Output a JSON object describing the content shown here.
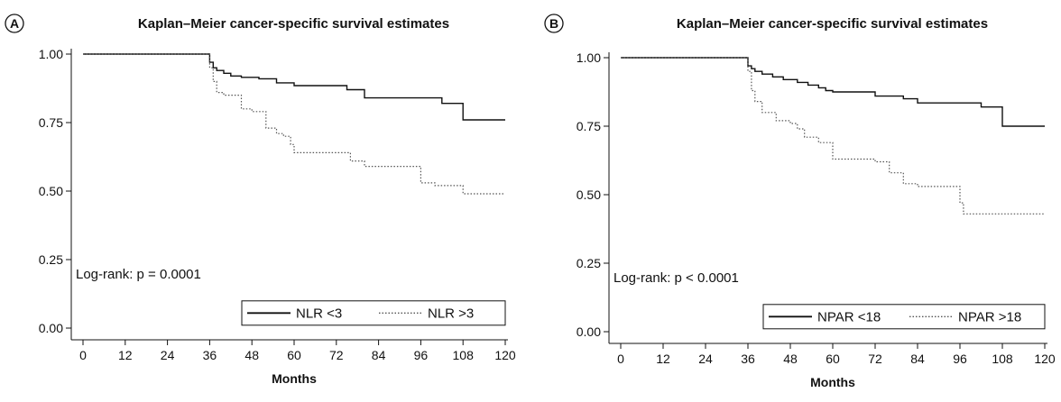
{
  "chart_data": [
    {
      "type": "line",
      "panel_label": "A",
      "title": "Kaplan–Meier cancer-specific survival estimates",
      "xlabel": "Months",
      "ylabel": "",
      "xlim": [
        0,
        120
      ],
      "ylim": [
        0,
        1
      ],
      "xticks": [
        "0",
        "12",
        "24",
        "36",
        "48",
        "60",
        "72",
        "84",
        "96",
        "108",
        "120"
      ],
      "yticks": [
        "0.00",
        "0.25",
        "0.50",
        "0.75",
        "1.00"
      ],
      "grid": false,
      "annotation": "Log-rank: p = 0.0001",
      "legend_position": "bottom-right",
      "series": [
        {
          "name": "NLR <3",
          "style": "solid",
          "points": [
            [
              0,
              1.0
            ],
            [
              36,
              1.0
            ],
            [
              36,
              0.97
            ],
            [
              37,
              0.95
            ],
            [
              38,
              0.94
            ],
            [
              40,
              0.93
            ],
            [
              42,
              0.92
            ],
            [
              45,
              0.915
            ],
            [
              50,
              0.91
            ],
            [
              55,
              0.895
            ],
            [
              60,
              0.885
            ],
            [
              75,
              0.87
            ],
            [
              80,
              0.84
            ],
            [
              102,
              0.82
            ],
            [
              108,
              0.76
            ],
            [
              120,
              0.76
            ]
          ]
        },
        {
          "name": "NLR >3",
          "style": "dotted",
          "points": [
            [
              0,
              1.0
            ],
            [
              36,
              1.0
            ],
            [
              36,
              0.95
            ],
            [
              37,
              0.9
            ],
            [
              38,
              0.86
            ],
            [
              40,
              0.85
            ],
            [
              45,
              0.8
            ],
            [
              48,
              0.79
            ],
            [
              52,
              0.73
            ],
            [
              55,
              0.71
            ],
            [
              57,
              0.7
            ],
            [
              59,
              0.67
            ],
            [
              60,
              0.64
            ],
            [
              76,
              0.61
            ],
            [
              80,
              0.59
            ],
            [
              84,
              0.59
            ],
            [
              96,
              0.53
            ],
            [
              100,
              0.52
            ],
            [
              108,
              0.49
            ],
            [
              120,
              0.49
            ]
          ]
        }
      ]
    },
    {
      "type": "line",
      "panel_label": "B",
      "title": "Kaplan–Meier cancer-specific survival estimates",
      "xlabel": "Months",
      "ylabel": "",
      "xlim": [
        0,
        120
      ],
      "ylim": [
        0,
        1
      ],
      "xticks": [
        "0",
        "12",
        "24",
        "36",
        "48",
        "60",
        "72",
        "84",
        "96",
        "108",
        "120"
      ],
      "yticks": [
        "0.00",
        "0.25",
        "0.50",
        "0.75",
        "1.00"
      ],
      "grid": false,
      "annotation": "Log-rank: p < 0.0001",
      "legend_position": "bottom-right",
      "series": [
        {
          "name": "NPAR <18",
          "style": "solid",
          "points": [
            [
              0,
              1.0
            ],
            [
              36,
              1.0
            ],
            [
              36,
              0.97
            ],
            [
              37,
              0.96
            ],
            [
              38,
              0.95
            ],
            [
              40,
              0.94
            ],
            [
              43,
              0.93
            ],
            [
              46,
              0.92
            ],
            [
              50,
              0.91
            ],
            [
              53,
              0.9
            ],
            [
              56,
              0.89
            ],
            [
              58,
              0.88
            ],
            [
              60,
              0.875
            ],
            [
              72,
              0.86
            ],
            [
              80,
              0.85
            ],
            [
              84,
              0.835
            ],
            [
              102,
              0.82
            ],
            [
              108,
              0.75
            ],
            [
              120,
              0.75
            ]
          ]
        },
        {
          "name": "NPAR >18",
          "style": "dotted",
          "points": [
            [
              0,
              1.0
            ],
            [
              36,
              1.0
            ],
            [
              36,
              0.95
            ],
            [
              37,
              0.88
            ],
            [
              38,
              0.84
            ],
            [
              40,
              0.8
            ],
            [
              44,
              0.77
            ],
            [
              48,
              0.76
            ],
            [
              50,
              0.74
            ],
            [
              52,
              0.71
            ],
            [
              56,
              0.69
            ],
            [
              60,
              0.63
            ],
            [
              72,
              0.62
            ],
            [
              76,
              0.58
            ],
            [
              80,
              0.54
            ],
            [
              84,
              0.53
            ],
            [
              96,
              0.47
            ],
            [
              97,
              0.43
            ],
            [
              120,
              0.43
            ]
          ]
        }
      ]
    }
  ]
}
